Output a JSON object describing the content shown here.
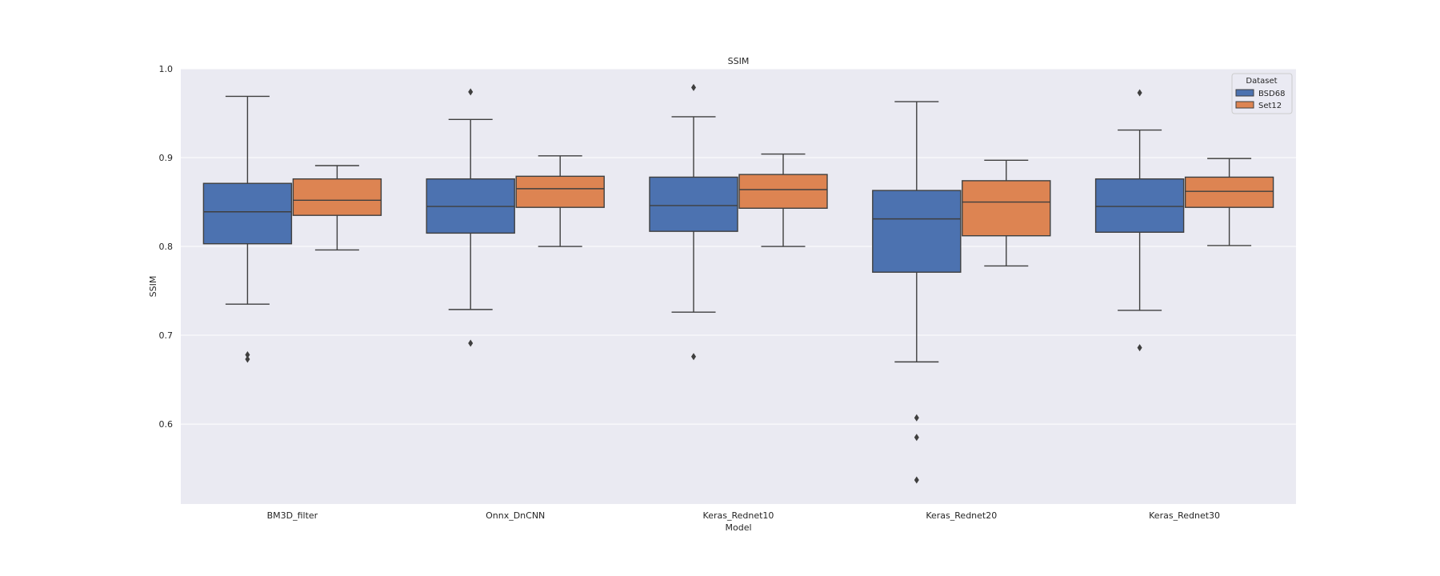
{
  "chart_data": {
    "type": "box",
    "title": "SSIM",
    "xlabel": "Model",
    "ylabel": "SSIM",
    "ylim": [
      0.51,
      1.0
    ],
    "yticks": [
      0.6,
      0.7,
      0.8,
      0.9,
      1.0
    ],
    "ytick_labels": [
      "0.6",
      "0.7",
      "0.8",
      "0.9",
      "1.0"
    ],
    "categories": [
      "BM3D_filter",
      "Onnx_DnCNN",
      "Keras_Rednet10",
      "Keras_Rednet20",
      "Keras_Rednet30"
    ],
    "grid": true,
    "legend": {
      "title": "Dataset",
      "position": "top-right"
    },
    "series": [
      {
        "name": "BSD68",
        "color": "#4c72b0",
        "boxes": [
          {
            "whislo": 0.735,
            "q1": 0.803,
            "med": 0.839,
            "q3": 0.871,
            "whishi": 0.969,
            "fliers": [
              0.678,
              0.673
            ]
          },
          {
            "whislo": 0.729,
            "q1": 0.815,
            "med": 0.845,
            "q3": 0.876,
            "whishi": 0.943,
            "fliers": [
              0.974,
              0.691
            ]
          },
          {
            "whislo": 0.726,
            "q1": 0.817,
            "med": 0.846,
            "q3": 0.878,
            "whishi": 0.946,
            "fliers": [
              0.979,
              0.676
            ]
          },
          {
            "whislo": 0.67,
            "q1": 0.771,
            "med": 0.831,
            "q3": 0.863,
            "whishi": 0.963,
            "fliers": [
              0.607,
              0.585,
              0.537
            ]
          },
          {
            "whislo": 0.728,
            "q1": 0.816,
            "med": 0.845,
            "q3": 0.876,
            "whishi": 0.931,
            "fliers": [
              0.973,
              0.686
            ]
          }
        ]
      },
      {
        "name": "Set12",
        "color": "#dd8452",
        "boxes": [
          {
            "whislo": 0.796,
            "q1": 0.835,
            "med": 0.852,
            "q3": 0.876,
            "whishi": 0.891,
            "fliers": []
          },
          {
            "whislo": 0.8,
            "q1": 0.844,
            "med": 0.865,
            "q3": 0.879,
            "whishi": 0.902,
            "fliers": []
          },
          {
            "whislo": 0.8,
            "q1": 0.843,
            "med": 0.864,
            "q3": 0.881,
            "whishi": 0.904,
            "fliers": []
          },
          {
            "whislo": 0.778,
            "q1": 0.812,
            "med": 0.85,
            "q3": 0.874,
            "whishi": 0.897,
            "fliers": []
          },
          {
            "whislo": 0.801,
            "q1": 0.844,
            "med": 0.862,
            "q3": 0.878,
            "whishi": 0.899,
            "fliers": []
          }
        ]
      }
    ]
  }
}
